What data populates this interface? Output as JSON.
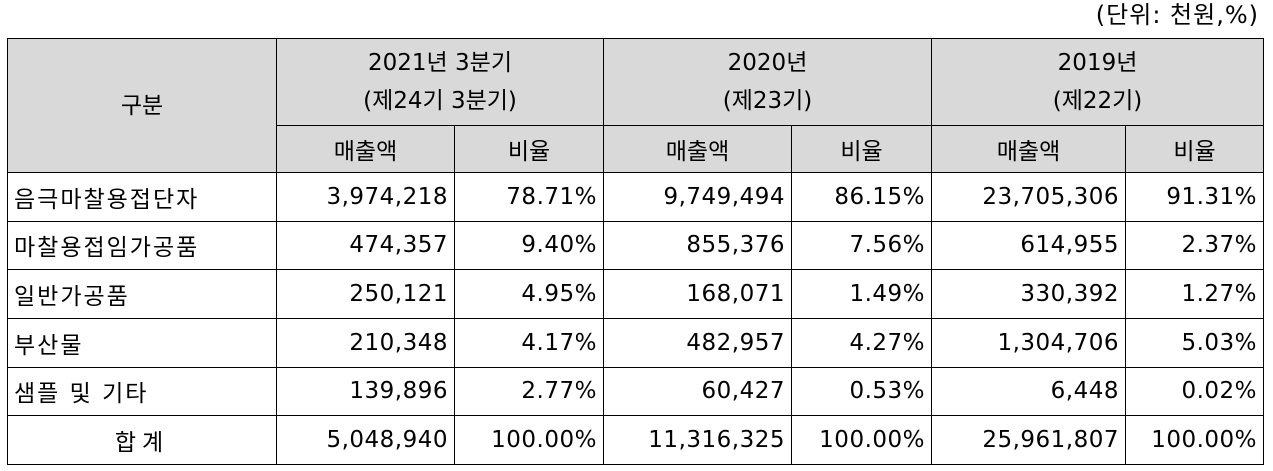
{
  "unit": "(단위: 천원,%)",
  "header": {
    "category": "구분",
    "periods": [
      {
        "line1": "2021년 3분기",
        "line2": "(제24기 3분기)"
      },
      {
        "line1": "2020년",
        "line2": "(제23기)"
      },
      {
        "line1": "2019년",
        "line2": "(제22기)"
      }
    ],
    "sales_label": "매출액",
    "ratio_label": "비율"
  },
  "rows": [
    {
      "category": "음극마찰용접단자",
      "values": [
        "3,974,218",
        "78.71%",
        "9,749,494",
        "86.15%",
        "23,705,306",
        "91.31%"
      ]
    },
    {
      "category": "마찰용접임가공품",
      "values": [
        "474,357",
        "9.40%",
        "855,376",
        "7.56%",
        "614,955",
        "2.37%"
      ]
    },
    {
      "category": "일반가공품",
      "values": [
        "250,121",
        "4.95%",
        "168,071",
        "1.49%",
        "330,392",
        "1.27%"
      ]
    },
    {
      "category": "부산물",
      "values": [
        "210,348",
        "4.17%",
        "482,957",
        "4.27%",
        "1,304,706",
        "5.03%"
      ]
    },
    {
      "category": "샘플 및 기타",
      "values": [
        "139,896",
        "2.77%",
        "60,427",
        "0.53%",
        "6,448",
        "0.02%"
      ]
    },
    {
      "category": "합계",
      "values": [
        "5,048,940",
        "100.00%",
        "11,316,325",
        "100.00%",
        "25,961,807",
        "100.00%"
      ]
    }
  ]
}
